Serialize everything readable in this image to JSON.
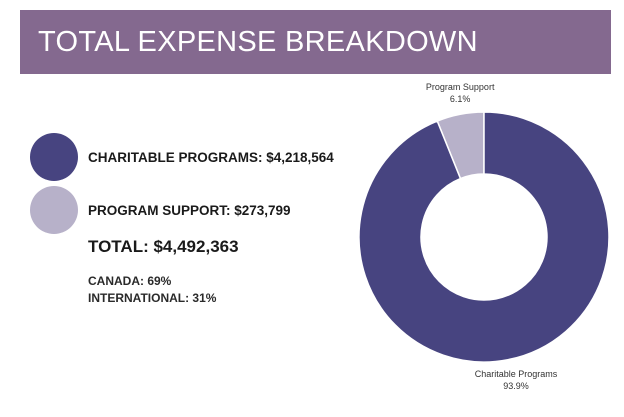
{
  "header": {
    "title": "TOTAL EXPENSE BREAKDOWN"
  },
  "legend": {
    "items": [
      {
        "label": "CHARITABLE PROGRAMS: $4,218,564",
        "color": "#474480"
      },
      {
        "label": "PROGRAM SUPPORT: $273,799",
        "color": "#b7b1c9"
      }
    ]
  },
  "summary": {
    "total": "TOTAL: $4,492,363",
    "canada": "CANADA: 69%",
    "international": "INTERNATIONAL: 31%"
  },
  "chart_data": {
    "type": "pie",
    "title": "",
    "donut": true,
    "slices": [
      {
        "name": "Program Support",
        "value": 6.1,
        "display": "6.1%",
        "color": "#b7b1c9"
      },
      {
        "name": "Charitable Programs",
        "value": 93.9,
        "display": "93.9%",
        "color": "#474480"
      }
    ]
  }
}
